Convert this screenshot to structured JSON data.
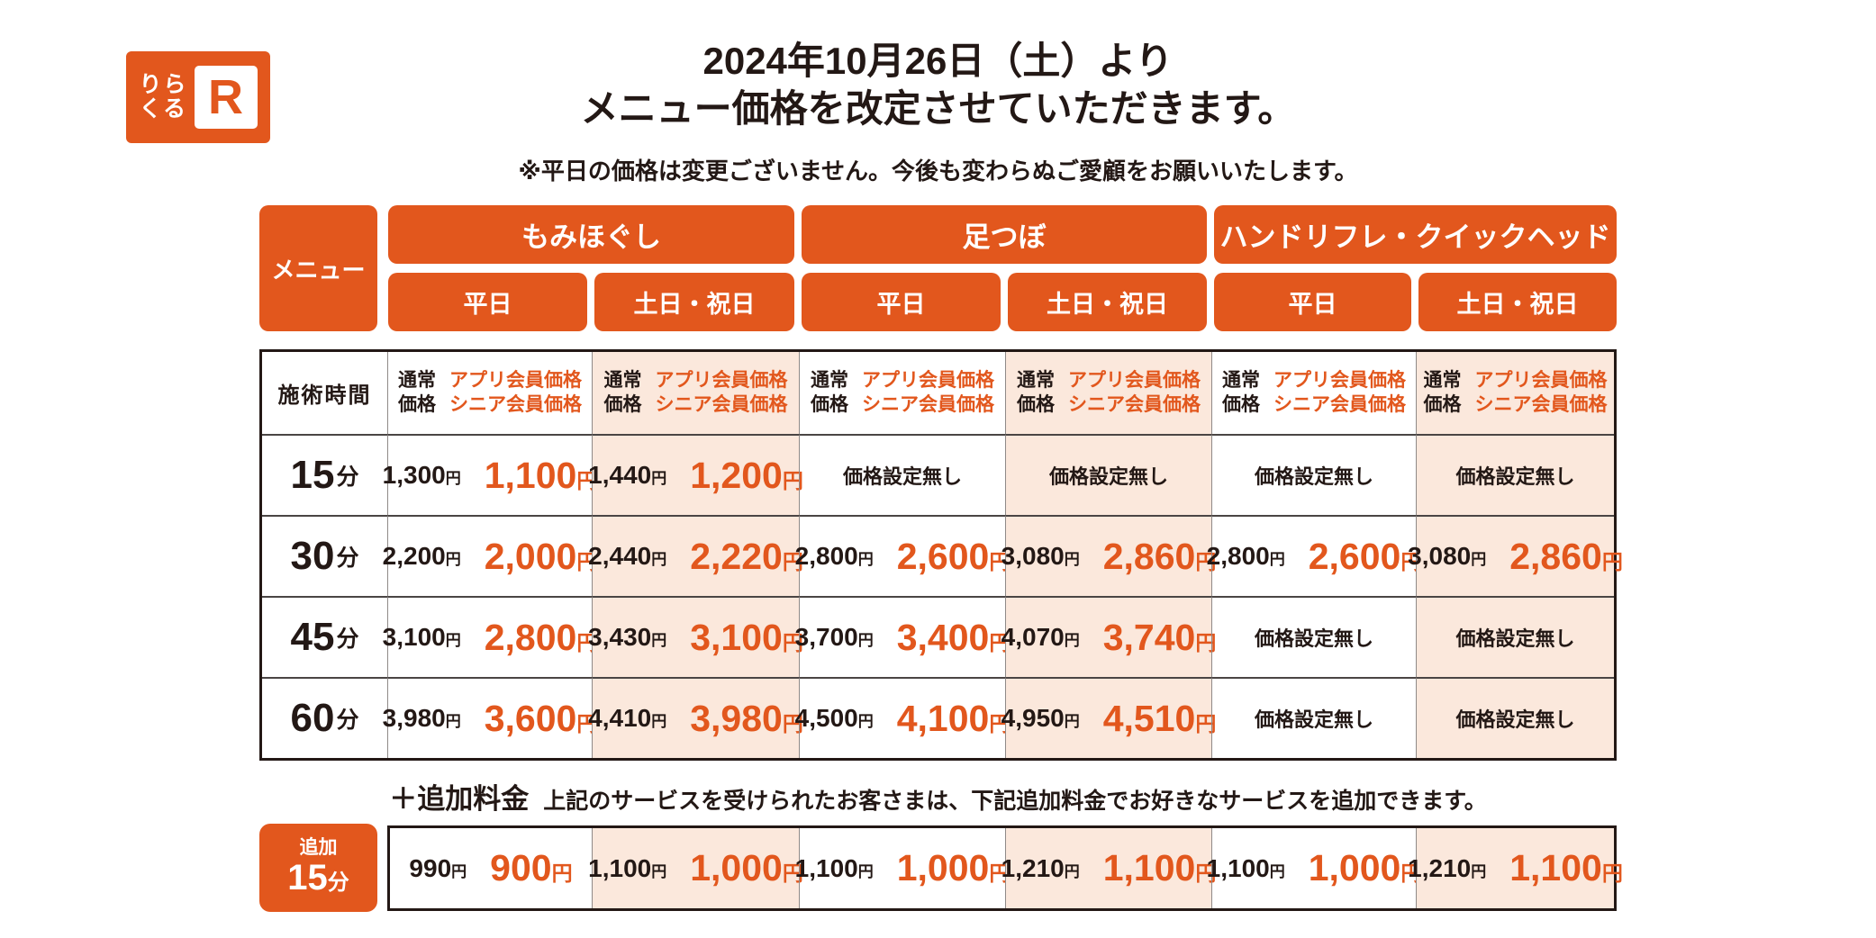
{
  "brand": {
    "name_line1": "りら",
    "name_line2": "くる",
    "mark": "R"
  },
  "title": {
    "line1": "2024年10月26日（土）より",
    "line2": "メニュー価格を改定させていただきます。"
  },
  "note": "※平日の価格は変更ございません。今後も変わらぬご愛顧をお願いいたします。",
  "colors": {
    "orange": "#E2571D",
    "peach": "#FBE8DC",
    "ink": "#231815"
  },
  "header": {
    "menu": "メニュー",
    "groups": [
      "もみほぐし",
      "足つぼ",
      "ハンドリフレ・クイックヘッド"
    ],
    "days": [
      "平日",
      "土日・祝日",
      "平日",
      "土日・祝日",
      "平日",
      "土日・祝日"
    ]
  },
  "table": {
    "time_header": "施術時間",
    "price_header": {
      "normal_l1": "通常",
      "normal_l2": "価格",
      "member_l1": "アプリ会員価格",
      "member_l2": "シニア会員価格"
    },
    "yen": "円",
    "rows": [
      {
        "time": "15",
        "unit": "分",
        "cells": [
          {
            "normal": "1,300",
            "member": "1,100"
          },
          {
            "normal": "1,440",
            "member": "1,200"
          },
          {
            "none": "価格設定無し"
          },
          {
            "none": "価格設定無し"
          },
          {
            "none": "価格設定無し"
          },
          {
            "none": "価格設定無し"
          }
        ]
      },
      {
        "time": "30",
        "unit": "分",
        "cells": [
          {
            "normal": "2,200",
            "member": "2,000"
          },
          {
            "normal": "2,440",
            "member": "2,220"
          },
          {
            "normal": "2,800",
            "member": "2,600"
          },
          {
            "normal": "3,080",
            "member": "2,860"
          },
          {
            "normal": "2,800",
            "member": "2,600"
          },
          {
            "normal": "3,080",
            "member": "2,860"
          }
        ]
      },
      {
        "time": "45",
        "unit": "分",
        "cells": [
          {
            "normal": "3,100",
            "member": "2,800"
          },
          {
            "normal": "3,430",
            "member": "3,100"
          },
          {
            "normal": "3,700",
            "member": "3,400"
          },
          {
            "normal": "4,070",
            "member": "3,740"
          },
          {
            "none": "価格設定無し"
          },
          {
            "none": "価格設定無し"
          }
        ]
      },
      {
        "time": "60",
        "unit": "分",
        "cells": [
          {
            "normal": "3,980",
            "member": "3,600"
          },
          {
            "normal": "4,410",
            "member": "3,980"
          },
          {
            "normal": "4,500",
            "member": "4,100"
          },
          {
            "normal": "4,950",
            "member": "4,510"
          },
          {
            "none": "価格設定無し"
          },
          {
            "none": "価格設定無し"
          }
        ]
      }
    ]
  },
  "addon": {
    "heading_strong": "＋追加料金",
    "heading_rest": "上記のサービスを受けられたお客さまは、下記追加料金でお好きなサービスを追加できます。",
    "label_top": "追加",
    "time": "15",
    "unit": "分",
    "cells": [
      {
        "normal": "990",
        "member": "900"
      },
      {
        "normal": "1,100",
        "member": "1,000"
      },
      {
        "normal": "1,100",
        "member": "1,000"
      },
      {
        "normal": "1,210",
        "member": "1,100"
      },
      {
        "normal": "1,100",
        "member": "1,000"
      },
      {
        "normal": "1,210",
        "member": "1,100"
      }
    ]
  }
}
